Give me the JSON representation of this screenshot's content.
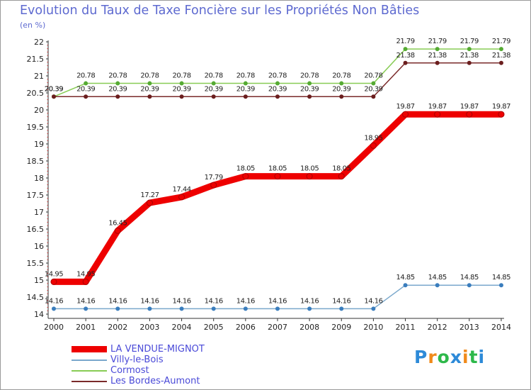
{
  "title": "Evolution du Taux de Taxe Foncière sur les Propriétés Non Bâties",
  "unit_label": "(en %)",
  "logo": {
    "text": "Proxiti",
    "colors": [
      "#2d8ad8",
      "#f08a1a",
      "#2db84a",
      "#2d8ad8",
      "#f08a1a",
      "#2db84a",
      "#2d8ad8"
    ]
  },
  "chart_data": {
    "type": "line",
    "title": "Evolution du Taux de Taxe Foncière sur les Propriétés Non Bâties",
    "ylabel": "(en %)",
    "xlabel": "",
    "ylim": [
      14,
      22
    ],
    "y_ticks": [
      "14",
      "14.5",
      "15",
      "15.5",
      "16",
      "16.5",
      "17",
      "17.5",
      "18",
      "18.5",
      "19",
      "19.5",
      "20",
      "20.5",
      "21",
      "21.5",
      "22"
    ],
    "categories": [
      "2000",
      "2001",
      "2002",
      "2003",
      "2004",
      "2005",
      "2006",
      "2007",
      "2008",
      "2009",
      "2010",
      "2011",
      "2012",
      "2013",
      "2014"
    ],
    "series": [
      {
        "name": "LA VENDUE-MIGNOT",
        "color": "#ee0000",
        "dot_color": "#ee0000",
        "width": "thick",
        "values": [
          14.95,
          14.95,
          16.45,
          17.27,
          17.44,
          17.79,
          18.05,
          18.05,
          18.05,
          18.05,
          18.95,
          19.87,
          19.87,
          19.87,
          19.87
        ],
        "labels": [
          "14.95",
          "14.95",
          "16.45",
          "17.27",
          "17.44",
          "17.79",
          "18.05",
          "18.05",
          "18.05",
          "18.05",
          "18.95",
          "19.87",
          "19.87",
          "19.87",
          "19.87"
        ]
      },
      {
        "name": "Villy-le-Bois",
        "color": "#7aa8cc",
        "dot_color": "#3a7dbd",
        "width": "thin",
        "values": [
          14.16,
          14.16,
          14.16,
          14.16,
          14.16,
          14.16,
          14.16,
          14.16,
          14.16,
          14.16,
          14.16,
          14.85,
          14.85,
          14.85,
          14.85
        ],
        "labels": [
          "14.16",
          "14.16",
          "14.16",
          "14.16",
          "14.16",
          "14.16",
          "14.16",
          "14.16",
          "14.16",
          "14.16",
          "14.16",
          "14.85",
          "14.85",
          "14.85",
          "14.85"
        ]
      },
      {
        "name": "Cormost",
        "color": "#88cc55",
        "dot_color": "#55aa33",
        "width": "thin",
        "values": [
          20.39,
          20.78,
          20.78,
          20.78,
          20.78,
          20.78,
          20.78,
          20.78,
          20.78,
          20.78,
          20.78,
          21.79,
          21.79,
          21.79,
          21.79
        ],
        "labels": [
          "20.39",
          "20.78",
          "20.78",
          "20.78",
          "20.78",
          "20.78",
          "20.78",
          "20.78",
          "20.78",
          "20.78",
          "20.78",
          "21.79",
          "21.79",
          "21.79",
          "21.79"
        ]
      },
      {
        "name": "Les Bordes-Aumont",
        "color": "#7a2a2a",
        "dot_color": "#6b1e1e",
        "width": "thin",
        "values": [
          20.39,
          20.39,
          20.39,
          20.39,
          20.39,
          20.39,
          20.39,
          20.39,
          20.39,
          20.39,
          20.39,
          21.38,
          21.38,
          21.38,
          21.38
        ],
        "labels": [
          "20.39",
          "20.39",
          "20.39",
          "20.39",
          "20.39",
          "20.39",
          "20.39",
          "20.39",
          "20.39",
          "20.39",
          "20.39",
          "21.38",
          "21.38",
          "21.38",
          "21.38"
        ]
      }
    ],
    "legend_position": "bottom-left",
    "grid": false
  }
}
